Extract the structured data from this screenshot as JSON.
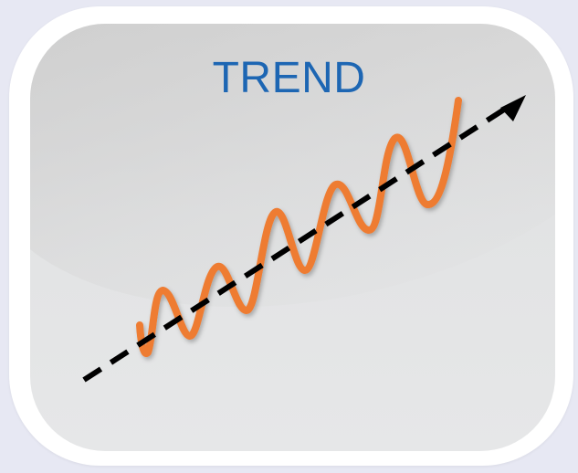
{
  "title": "TREND",
  "colors": {
    "background": "#e7e8f3",
    "frame": "#ffffff",
    "title": "#1d66b3",
    "oscillation": "#ee7b30",
    "trend_line": "#000000"
  },
  "icons": {
    "trend_arrow": "dashed-arrow-icon",
    "signal": "wave-line-icon"
  }
}
